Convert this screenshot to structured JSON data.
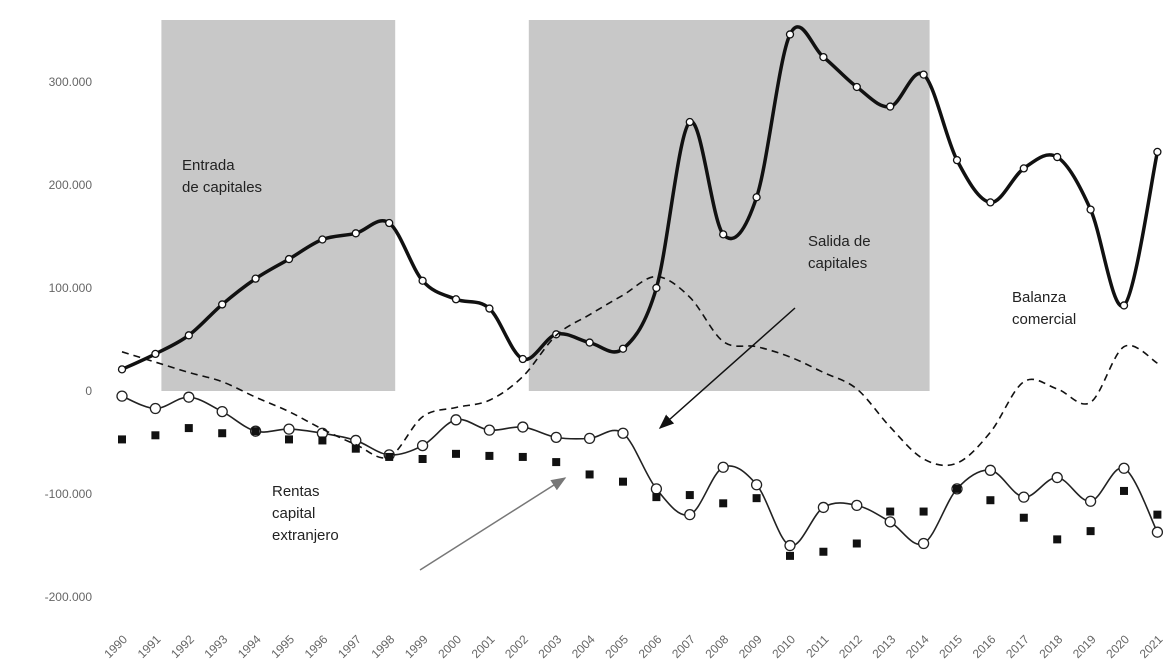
{
  "chart_data": {
    "type": "line",
    "categories": [
      "1990",
      "1991",
      "1992",
      "1993",
      "1994",
      "1995",
      "1996",
      "1997",
      "1998",
      "1999",
      "2000",
      "2001",
      "2002",
      "2003",
      "2004",
      "2005",
      "2006",
      "2007",
      "2008",
      "2009",
      "2010",
      "2011",
      "2012",
      "2013",
      "2014",
      "2015",
      "2016",
      "2017",
      "2018",
      "2019",
      "2020",
      "2021"
    ],
    "series": [
      {
        "color": "#111111",
        "style": "thick",
        "values": [
          21000,
          36000,
          54000,
          84000,
          109000,
          128000,
          147000,
          153000,
          163000,
          107000,
          89000,
          80000,
          31000,
          55000,
          47000,
          41000,
          100000,
          261000,
          152000,
          188000,
          346000,
          324000,
          295000,
          276000,
          307000,
          224000,
          183000,
          216000,
          227000,
          176000,
          83000,
          232000
        ]
      },
      {
        "color": "#222222",
        "style": "thin",
        "values": [
          -5000,
          -17000,
          -6000,
          -20000,
          -39000,
          -37000,
          -41000,
          -48000,
          -62000,
          -53000,
          -28000,
          -38000,
          -35000,
          -45000,
          -46000,
          -41000,
          -95000,
          -120000,
          -74000,
          -91000,
          -150000,
          -113000,
          -111000,
          -127000,
          -148000,
          -95000,
          -77000,
          -103000,
          -84000,
          -107000,
          -75000,
          -137000
        ]
      },
      {
        "color": "#111111",
        "style": "dashed",
        "values": [
          38000,
          28000,
          18000,
          9000,
          -6000,
          -20000,
          -37000,
          -52000,
          -64000,
          -25000,
          -16000,
          -9000,
          14000,
          54000,
          74000,
          93000,
          111000,
          91000,
          48000,
          43000,
          33000,
          18000,
          2000,
          -35000,
          -66000,
          -70000,
          -40000,
          9000,
          2000,
          -11000,
          43000,
          27000
        ]
      },
      {
        "color": "#111111",
        "style": "squares",
        "values": [
          -47000,
          -43000,
          -36000,
          -41000,
          -39000,
          -47000,
          -48000,
          -56000,
          -64000,
          -66000,
          -61000,
          -63000,
          -64000,
          -69000,
          -81000,
          -88000,
          -103000,
          -101000,
          -109000,
          -104000,
          -160000,
          -156000,
          -148000,
          -117000,
          -117000,
          -95000,
          -106000,
          -123000,
          -144000,
          -136000,
          -97000,
          -120000
        ]
      }
    ],
    "ylim": [
      -230000,
      360000
    ],
    "yticks": [
      {
        "value": 300000,
        "label": "300.000"
      },
      {
        "value": 200000,
        "label": "200.000"
      },
      {
        "value": 100000,
        "label": "100.000"
      },
      0,
      {
        "value": -100000,
        "label": "-100.000"
      },
      {
        "value": -200000,
        "label": "-200.000"
      }
    ],
    "shaded": [
      {
        "start": "1991",
        "end": "1998",
        "color": "#c8c8c8"
      },
      {
        "start": "2002",
        "end": "2014",
        "color": "#c8c8c8"
      }
    ],
    "annotations": [
      {
        "lines": [
          "Entrada",
          "de capitales"
        ]
      },
      {
        "lines": [
          "Salida de",
          "capitales"
        ]
      },
      {
        "lines": [
          "Balanza",
          "comercial"
        ]
      },
      {
        "lines": [
          "Rentas",
          "capital",
          "extranjero"
        ]
      }
    ]
  }
}
